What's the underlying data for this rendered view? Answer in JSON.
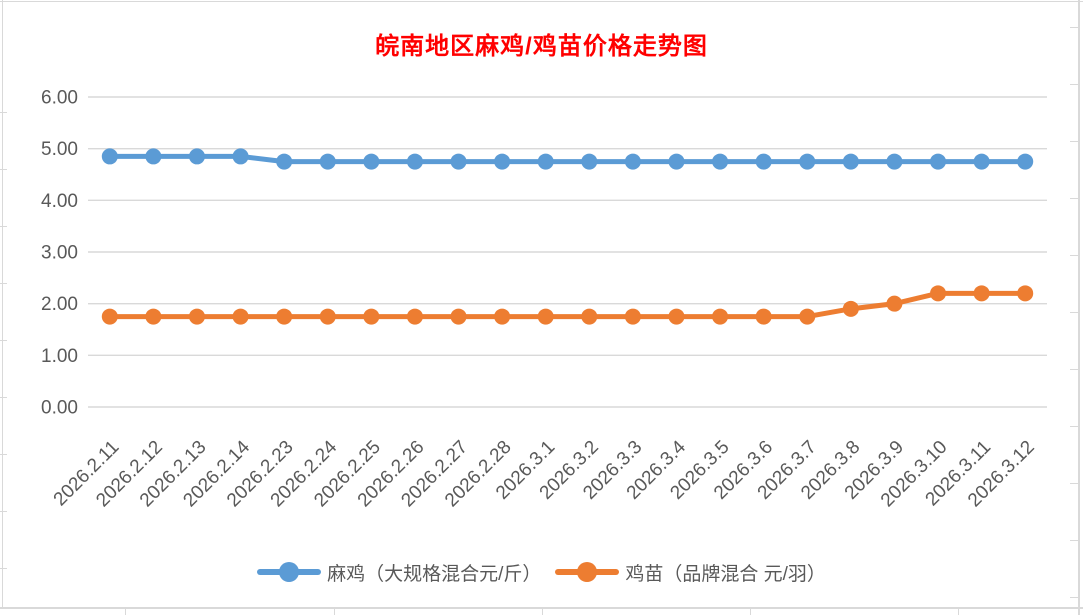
{
  "title": {
    "text": "皖南地区麻鸡/鸡苗价格走势图",
    "color": "#FF0000"
  },
  "chart_data": {
    "type": "line",
    "categories": [
      "2026.2.11",
      "2026.2.12",
      "2026.2.13",
      "2026.2.14",
      "2026.2.23",
      "2026.2.24",
      "2026.2.25",
      "2026.2.26",
      "2026.2.27",
      "2026.2.28",
      "2026.3.1",
      "2026.3.2",
      "2026.3.3",
      "2026.3.4",
      "2026.3.5",
      "2026.3.6",
      "2026.3.7",
      "2026.3.8",
      "2026.3.9",
      "2026.3.10",
      "2026.3.11",
      "2026.3.12"
    ],
    "series": [
      {
        "name": "麻鸡（大规格混合元/斤）",
        "color": "#5B9BD5",
        "values": [
          4.85,
          4.85,
          4.85,
          4.85,
          4.75,
          4.75,
          4.75,
          4.75,
          4.75,
          4.75,
          4.75,
          4.75,
          4.75,
          4.75,
          4.75,
          4.75,
          4.75,
          4.75,
          4.75,
          4.75,
          4.75,
          4.75
        ]
      },
      {
        "name": "鸡苗（品牌混合 元/羽）",
        "color": "#ED7D31",
        "values": [
          1.75,
          1.75,
          1.75,
          1.75,
          1.75,
          1.75,
          1.75,
          1.75,
          1.75,
          1.75,
          1.75,
          1.75,
          1.75,
          1.75,
          1.75,
          1.75,
          1.75,
          1.9,
          2.0,
          2.2,
          2.2,
          2.2
        ]
      }
    ],
    "yticks": [
      "0.00",
      "1.00",
      "2.00",
      "3.00",
      "4.00",
      "5.00",
      "6.00"
    ],
    "ylim": [
      0,
      6
    ],
    "ytick_step": 1,
    "grid": true,
    "legend_position": "bottom",
    "axis_text_color": "#595959",
    "gridline_color": "#D9D9D9"
  }
}
